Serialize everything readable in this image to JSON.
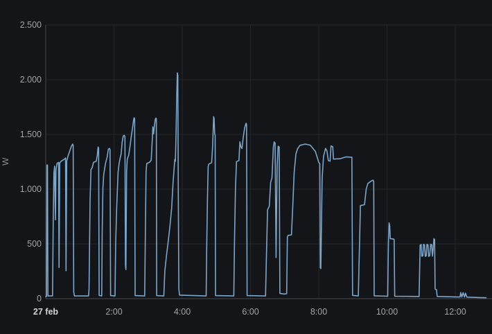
{
  "chart": {
    "unit_label": "W",
    "colors": {
      "background": "#141518",
      "line": "#7ba7cc",
      "grid": "#242628",
      "axis": "#46494d",
      "tick_text": "#a1a3a6",
      "date_text": "#d4d5d7"
    }
  },
  "chart_data": {
    "type": "line",
    "title": "",
    "xlabel": "",
    "ylabel": "W",
    "x_unit": "hours_since_midnight",
    "xlim": [
      0,
      13.07
    ],
    "ylim": [
      0,
      2500
    ],
    "grid": true,
    "legend": false,
    "x_ticks": [
      {
        "label": "27 feb",
        "hour": 0,
        "bold": true
      },
      {
        "label": "2:00",
        "hour": 2
      },
      {
        "label": "4:00",
        "hour": 4
      },
      {
        "label": "6:00",
        "hour": 6
      },
      {
        "label": "8:00",
        "hour": 8
      },
      {
        "label": "10:00",
        "hour": 10
      },
      {
        "label": "12:00",
        "hour": 12
      }
    ],
    "y_ticks": [
      {
        "label": "0",
        "value": 0
      },
      {
        "label": "500",
        "value": 500
      },
      {
        "label": "1.000",
        "value": 1000
      },
      {
        "label": "1.500",
        "value": 1500
      },
      {
        "label": "2.000",
        "value": 2000
      },
      {
        "label": "2.500",
        "value": 2500
      }
    ],
    "series": [
      {
        "name": "power_w",
        "color": "#7ba7cc",
        "points": [
          [
            0.0,
            20
          ],
          [
            0.025,
            20
          ],
          [
            0.035,
            1220
          ],
          [
            0.05,
            1220
          ],
          [
            0.065,
            25
          ],
          [
            0.2,
            25
          ],
          [
            0.22,
            700
          ],
          [
            0.24,
            1150
          ],
          [
            0.26,
            1210
          ],
          [
            0.275,
            900
          ],
          [
            0.285,
            720
          ],
          [
            0.3,
            1180
          ],
          [
            0.33,
            1235
          ],
          [
            0.375,
            1245
          ],
          [
            0.39,
            285
          ],
          [
            0.41,
            1240
          ],
          [
            0.45,
            1255
          ],
          [
            0.55,
            1275
          ],
          [
            0.58,
            1285
          ],
          [
            0.595,
            255
          ],
          [
            0.615,
            1255
          ],
          [
            0.65,
            1300
          ],
          [
            0.7,
            1345
          ],
          [
            0.75,
            1390
          ],
          [
            0.79,
            1412
          ],
          [
            0.805,
            1400
          ],
          [
            0.82,
            60
          ],
          [
            0.84,
            25
          ],
          [
            1.255,
            25
          ],
          [
            1.27,
            90
          ],
          [
            1.285,
            520
          ],
          [
            1.3,
            900
          ],
          [
            1.325,
            1180
          ],
          [
            1.36,
            1195
          ],
          [
            1.4,
            1245
          ],
          [
            1.48,
            1255
          ],
          [
            1.51,
            1310
          ],
          [
            1.535,
            1385
          ],
          [
            1.55,
            1375
          ],
          [
            1.565,
            30
          ],
          [
            1.64,
            25
          ],
          [
            1.655,
            620
          ],
          [
            1.675,
            1010
          ],
          [
            1.7,
            1135
          ],
          [
            1.75,
            1235
          ],
          [
            1.8,
            1295
          ],
          [
            1.835,
            1365
          ],
          [
            1.87,
            1372
          ],
          [
            1.885,
            1360
          ],
          [
            1.9,
            28
          ],
          [
            2.03,
            25
          ],
          [
            2.05,
            520
          ],
          [
            2.08,
            835
          ],
          [
            2.12,
            1155
          ],
          [
            2.15,
            1235
          ],
          [
            2.18,
            1285
          ],
          [
            2.21,
            1320
          ],
          [
            2.24,
            1430
          ],
          [
            2.27,
            1485
          ],
          [
            2.3,
            1492
          ],
          [
            2.32,
            1480
          ],
          [
            2.335,
            310
          ],
          [
            2.35,
            265
          ],
          [
            2.37,
            1160
          ],
          [
            2.39,
            1275
          ],
          [
            2.43,
            1310
          ],
          [
            2.47,
            1390
          ],
          [
            2.51,
            1490
          ],
          [
            2.55,
            1575
          ],
          [
            2.58,
            1645
          ],
          [
            2.595,
            1652
          ],
          [
            2.605,
            1640
          ],
          [
            2.62,
            28
          ],
          [
            2.9,
            25
          ],
          [
            2.92,
            610
          ],
          [
            2.94,
            1160
          ],
          [
            2.96,
            1235
          ],
          [
            3.04,
            1245
          ],
          [
            3.09,
            1265
          ],
          [
            3.12,
            1445
          ],
          [
            3.14,
            1570
          ],
          [
            3.16,
            1505
          ],
          [
            3.18,
            1565
          ],
          [
            3.21,
            1640
          ],
          [
            3.23,
            1650
          ],
          [
            3.24,
            1640
          ],
          [
            3.25,
            28
          ],
          [
            3.46,
            25
          ],
          [
            3.49,
            255
          ],
          [
            3.54,
            395
          ],
          [
            3.59,
            525
          ],
          [
            3.64,
            665
          ],
          [
            3.69,
            825
          ],
          [
            3.73,
            1055
          ],
          [
            3.76,
            1185
          ],
          [
            3.78,
            1270
          ],
          [
            3.8,
            1255
          ],
          [
            3.82,
            1510
          ],
          [
            3.84,
            1860
          ],
          [
            3.855,
            2062
          ],
          [
            3.87,
            2040
          ],
          [
            3.885,
            950
          ],
          [
            3.9,
            90
          ],
          [
            3.92,
            32
          ],
          [
            4.7,
            25
          ],
          [
            4.715,
            420
          ],
          [
            4.74,
            920
          ],
          [
            4.76,
            1205
          ],
          [
            4.78,
            1230
          ],
          [
            4.86,
            1242
          ],
          [
            4.89,
            1390
          ],
          [
            4.92,
            1662
          ],
          [
            4.935,
            1645
          ],
          [
            4.95,
            1505
          ],
          [
            4.965,
            1492
          ],
          [
            4.975,
            28
          ],
          [
            5.51,
            25
          ],
          [
            5.53,
            520
          ],
          [
            5.56,
            1010
          ],
          [
            5.59,
            1252
          ],
          [
            5.66,
            1262
          ],
          [
            5.69,
            1432
          ],
          [
            5.72,
            1385
          ],
          [
            5.75,
            1372
          ],
          [
            5.79,
            1482
          ],
          [
            5.83,
            1562
          ],
          [
            5.87,
            1602
          ],
          [
            5.885,
            1590
          ],
          [
            5.9,
            28
          ],
          [
            6.44,
            25
          ],
          [
            6.46,
            310
          ],
          [
            6.5,
            812
          ],
          [
            6.55,
            845
          ],
          [
            6.59,
            1062
          ],
          [
            6.63,
            1105
          ],
          [
            6.67,
            1385
          ],
          [
            6.695,
            1432
          ],
          [
            6.72,
            1420
          ],
          [
            6.75,
            375
          ],
          [
            6.78,
            1205
          ],
          [
            6.81,
            1392
          ],
          [
            6.84,
            1385
          ],
          [
            6.86,
            48
          ],
          [
            7.0,
            42
          ],
          [
            7.06,
            46
          ],
          [
            7.08,
            560
          ],
          [
            7.1,
            578
          ],
          [
            7.2,
            582
          ],
          [
            7.24,
            860
          ],
          [
            7.28,
            1150
          ],
          [
            7.33,
            1320
          ],
          [
            7.38,
            1370
          ],
          [
            7.45,
            1400
          ],
          [
            7.6,
            1412
          ],
          [
            7.75,
            1402
          ],
          [
            7.9,
            1345
          ],
          [
            8.0,
            1245
          ],
          [
            8.03,
            1232
          ],
          [
            8.045,
            282
          ],
          [
            8.06,
            275
          ],
          [
            8.1,
            1100
          ],
          [
            8.14,
            1300
          ],
          [
            8.2,
            1372
          ],
          [
            8.24,
            1350
          ],
          [
            8.28,
            1262
          ],
          [
            8.33,
            1255
          ],
          [
            8.36,
            1395
          ],
          [
            8.41,
            1388
          ],
          [
            8.43,
            1275
          ],
          [
            8.62,
            1278
          ],
          [
            8.8,
            1295
          ],
          [
            8.97,
            1292
          ],
          [
            8.99,
            30
          ],
          [
            9.16,
            25
          ],
          [
            9.18,
            310
          ],
          [
            9.2,
            565
          ],
          [
            9.22,
            850
          ],
          [
            9.34,
            858
          ],
          [
            9.39,
            1002
          ],
          [
            9.44,
            1052
          ],
          [
            9.54,
            1075
          ],
          [
            9.59,
            1082
          ],
          [
            9.61,
            1072
          ],
          [
            9.625,
            26
          ],
          [
            10.02,
            22
          ],
          [
            10.04,
            510
          ],
          [
            10.06,
            692
          ],
          [
            10.08,
            665
          ],
          [
            10.095,
            548
          ],
          [
            10.19,
            545
          ],
          [
            10.21,
            540
          ],
          [
            10.225,
            22
          ],
          [
            10.94,
            20
          ],
          [
            10.97,
            488
          ],
          [
            11.0,
            495
          ],
          [
            11.02,
            388
          ],
          [
            11.05,
            392
          ],
          [
            11.07,
            496
          ],
          [
            11.1,
            490
          ],
          [
            11.12,
            386
          ],
          [
            11.15,
            392
          ],
          [
            11.17,
            497
          ],
          [
            11.2,
            491
          ],
          [
            11.22,
            387
          ],
          [
            11.25,
            393
          ],
          [
            11.28,
            497
          ],
          [
            11.31,
            492
          ],
          [
            11.33,
            388
          ],
          [
            11.355,
            460
          ],
          [
            11.375,
            548
          ],
          [
            11.395,
            540
          ],
          [
            11.41,
            88
          ],
          [
            11.45,
            82
          ],
          [
            11.47,
            20
          ],
          [
            12.1,
            15
          ],
          [
            12.14,
            16
          ],
          [
            12.16,
            56
          ],
          [
            12.19,
            15
          ],
          [
            12.23,
            55
          ],
          [
            12.27,
            15
          ],
          [
            12.3,
            50
          ],
          [
            12.34,
            14
          ],
          [
            12.5,
            12
          ],
          [
            12.7,
            10
          ],
          [
            12.9,
            8
          ]
        ]
      }
    ]
  }
}
